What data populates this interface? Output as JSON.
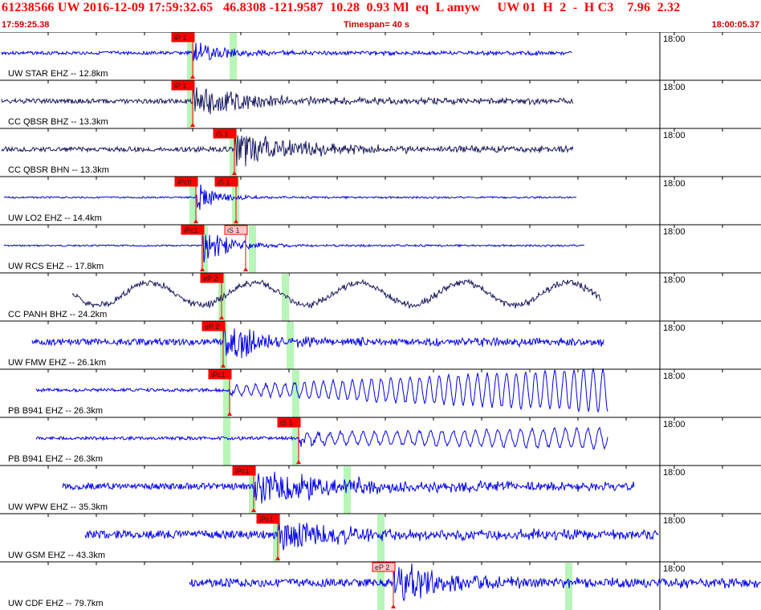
{
  "header": {
    "title": "61238566 UW 2016-12-09 17:59:32.65   46.8308 -121.9587  10.28  0.93 Ml  eq  L amyw     UW 01  H  2  -  H C3    7.96  2.32",
    "start_time": "17:59:25.38",
    "timespan": "Timespan=  40 s",
    "end_time": "18:00:05.37"
  },
  "colors": {
    "trace_blue": "#0000ee",
    "trace_navy": "#1a1a5e",
    "pick_red": "#ff0000",
    "pick_light": "#ffc8c8",
    "window_green": "#b8f5b8",
    "header_red": "#ff0000"
  },
  "minute_label": "18:00",
  "rows": [
    {
      "label": "UW STAR EHZ -- 12.8km",
      "color": "navy_blue",
      "start": 2,
      "end": 712,
      "onset": 240,
      "amp": 16,
      "noise": 2,
      "decay": 40,
      "period": 5,
      "style": "burst",
      "windows": [
        233,
        286
      ],
      "picks": [
        {
          "text": "iP 1",
          "x": 240,
          "light": false
        }
      ]
    },
    {
      "label": "CC QBSR BHZ -- 13.3km",
      "color": "navy",
      "start": 2,
      "end": 714,
      "onset": 240,
      "amp": 20,
      "noise": 3,
      "decay": 80,
      "period": 6,
      "style": "burst",
      "windows": [
        233
      ],
      "picks": [
        {
          "text": "iP 1",
          "x": 240,
          "light": false
        }
      ]
    },
    {
      "label": "CC QBSR BHN -- 13.3km",
      "color": "navy",
      "start": 2,
      "end": 714,
      "onset": 292,
      "amp": 22,
      "noise": 3,
      "decay": 90,
      "period": 6,
      "style": "burst",
      "windows": [
        286
      ],
      "picks": [
        {
          "text": "iS 1",
          "x": 292,
          "light": false
        }
      ]
    },
    {
      "label": "UW LO2 EHZ -- 14.4km",
      "color": "blue",
      "start": 5,
      "end": 718,
      "onset": 244,
      "amp": 22,
      "noise": 1,
      "decay": 25,
      "period": 4,
      "style": "burst",
      "windows": [
        236,
        289
      ],
      "picks": [
        {
          "text": "iPc0",
          "x": 244,
          "light": false
        },
        {
          "text": "iS 1",
          "x": 294,
          "light": false
        }
      ]
    },
    {
      "label": "UW RCS EHZ -- 17.8km",
      "color": "blue",
      "start": 5,
      "end": 728,
      "onset": 252,
      "amp": 24,
      "noise": 1,
      "decay": 35,
      "period": 4,
      "style": "burst",
      "windows": [
        250,
        310
      ],
      "picks": [
        {
          "text": "iPc1",
          "x": 252,
          "light": false
        },
        {
          "text": "iS 1",
          "x": 306,
          "light": true
        }
      ]
    },
    {
      "label": "CC PANH BHZ -- 24.2km",
      "color": "navy",
      "start": 90,
      "end": 748,
      "onset": 276,
      "amp": 14,
      "noise": 3,
      "decay": 200,
      "period": 130,
      "style": "swell",
      "windows": [
        272,
        351
      ],
      "picks": [
        {
          "text": "eP 2",
          "x": 276,
          "light": false
        }
      ]
    },
    {
      "label": "UW FMW EHZ -- 26.1km",
      "color": "blue",
      "start": 40,
      "end": 752,
      "onset": 278,
      "amp": 22,
      "noise": 4,
      "decay": 60,
      "period": 4,
      "style": "burst",
      "windows": [
        274,
        357
      ],
      "picks": [
        {
          "text": "eP 2",
          "x": 278,
          "light": false
        }
      ]
    },
    {
      "label": "PB B941 EHZ -- 26.3km",
      "color": "blue",
      "start": 45,
      "end": 757,
      "onset": 286,
      "amp": 26,
      "noise": 2,
      "decay": 60,
      "period": 12,
      "style": "grow",
      "windows": [
        278,
        364
      ],
      "picks": [
        {
          "text": "iPc1",
          "x": 286,
          "light": false
        }
      ]
    },
    {
      "label": "PB B941 EHZ -- 26.3km",
      "color": "blue",
      "start": 45,
      "end": 757,
      "onset": 372,
      "amp": 22,
      "noise": 2,
      "decay": 50,
      "period": 14,
      "style": "swellgrow",
      "windows": [
        278,
        364
      ],
      "picks": [
        {
          "text": "iS 1",
          "x": 372,
          "light": false
        }
      ]
    },
    {
      "label": "UW WPW EHZ -- 35.3km",
      "color": "blue",
      "start": 78,
      "end": 790,
      "onset": 316,
      "amp": 20,
      "noise": 4,
      "decay": 150,
      "period": 4,
      "style": "burst",
      "windows": [
        310,
        428
      ],
      "picks": [
        {
          "text": "iPc1",
          "x": 316,
          "light": false
        }
      ]
    },
    {
      "label": "UW GSM EHZ -- 43.3km",
      "color": "blue",
      "start": 106,
      "end": 820,
      "onset": 346,
      "amp": 20,
      "noise": 5,
      "decay": 90,
      "period": 4,
      "style": "burst",
      "windows": [
        340,
        470
      ],
      "picks": [
        {
          "text": "iPc1",
          "x": 346,
          "light": false
        }
      ]
    },
    {
      "label": "UW CDF EHZ -- 79.7km",
      "color": "blue",
      "start": 236,
      "end": 948,
      "onset": 490,
      "amp": 28,
      "noise": 5,
      "decay": 60,
      "period": 4,
      "style": "burst",
      "windows": [
        470,
        704
      ],
      "picks": [
        {
          "text": "eP 2",
          "x": 490,
          "light": true
        }
      ]
    }
  ]
}
